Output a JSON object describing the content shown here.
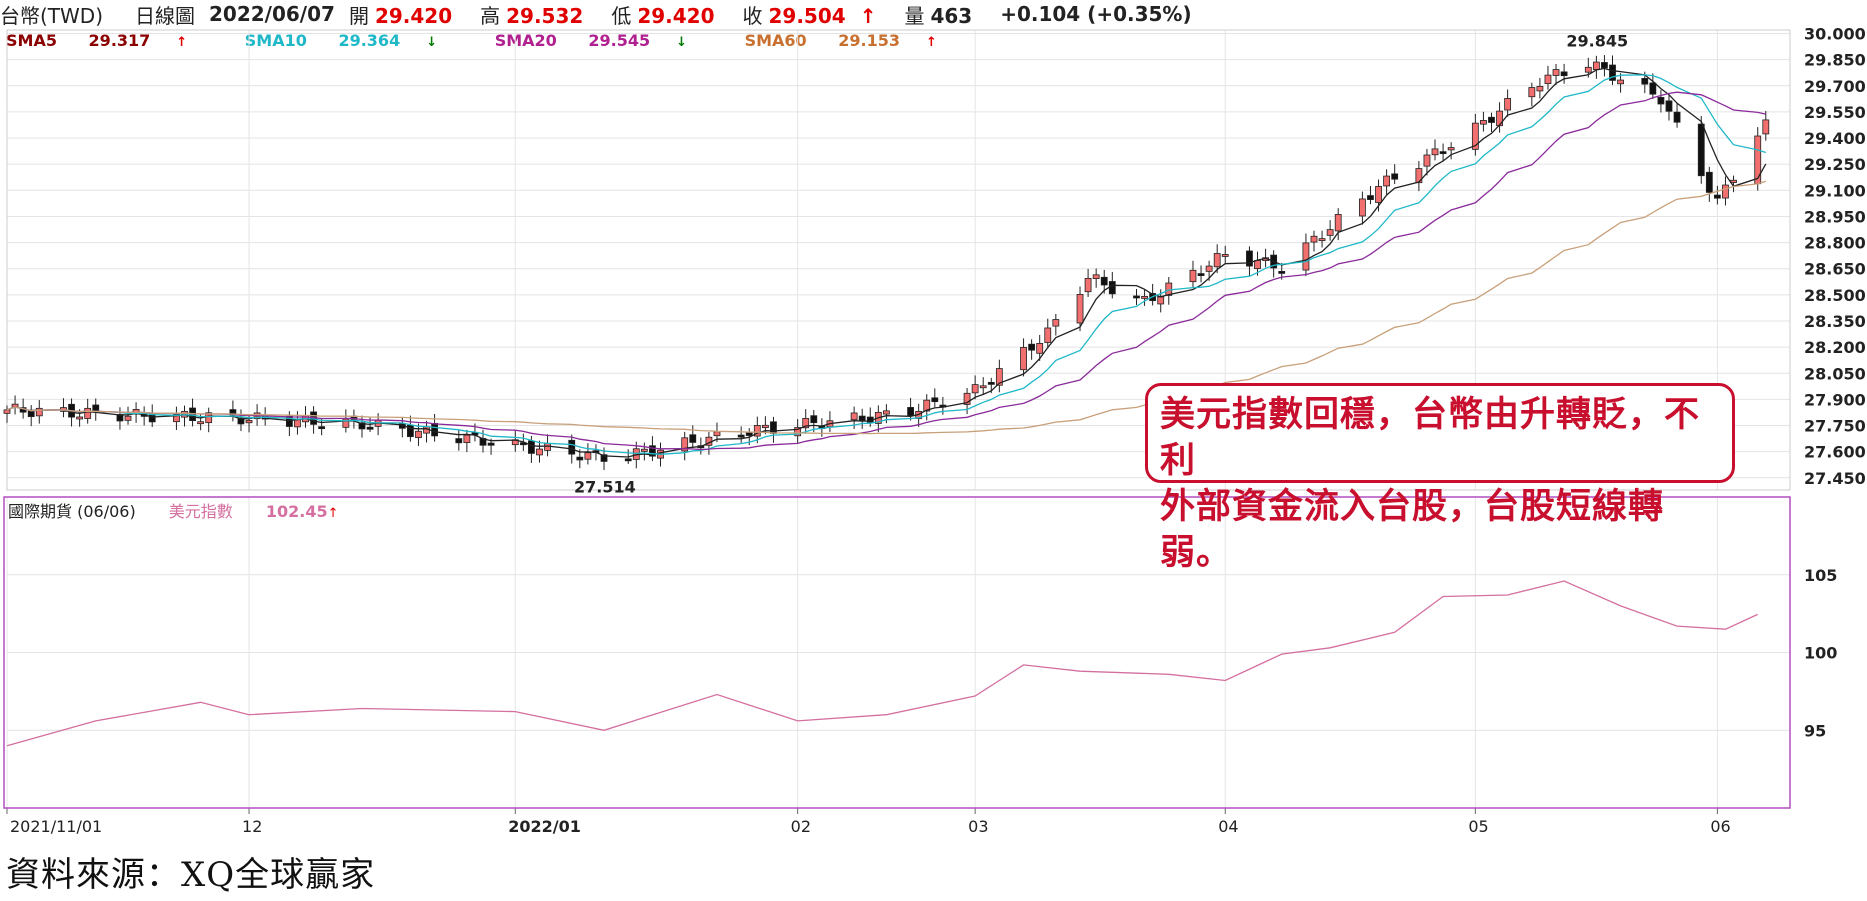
{
  "header": {
    "symbol": "台幣(TWD)",
    "period": "日線圖",
    "date": "2022/06/07",
    "open_label": "開",
    "open": "29.420",
    "high_label": "高",
    "high": "29.532",
    "low_label": "低",
    "low": "29.420",
    "close_label": "收",
    "close": "29.504",
    "volume_label": "量",
    "volume": "463",
    "change": "+0.104 (+0.35%)"
  },
  "legend": [
    {
      "label": "SMA5",
      "value": "29.317",
      "arrow": "up",
      "color": "#8b0000"
    },
    {
      "label": "SMA10",
      "value": "29.364",
      "arrow": "down",
      "color": "#1fb8c8"
    },
    {
      "label": "SMA20",
      "value": "29.545",
      "arrow": "down",
      "color": "#b0208f"
    },
    {
      "label": "SMA60",
      "value": "29.153",
      "arrow": "up",
      "color": "#c87030"
    }
  ],
  "sub_legend": {
    "panel_title": "國際期貨 (06/06)",
    "series_label": "美元指數",
    "series_value": "102.45",
    "color": "#d46fa0"
  },
  "annotation": {
    "line1": "美元指數回穩，台幣由升轉貶，不利",
    "line2": "外部資金流入台股，台股短線轉弱。"
  },
  "source": "資料來源：XQ全球贏家",
  "colors": {
    "up_candle": "#f26f6f",
    "down_candle": "#111111",
    "grid": "#e4e4e4",
    "frame": "#b24fc0"
  },
  "chart_data": [
    {
      "type": "candlestick",
      "title": "台幣(TWD) 日線圖",
      "x_tick_labels": [
        "2021/11/01",
        "12",
        "2022/01",
        "02",
        "03",
        "04",
        "05",
        "06"
      ],
      "x_tick_dates": [
        "2021-11-01",
        "2021-12-01",
        "2022-01-03",
        "2022-02-07",
        "2022-03-01",
        "2022-04-01",
        "2022-05-02",
        "2022-06-01"
      ],
      "y_tick_labels": [
        "30.000",
        "29.850",
        "29.700",
        "29.550",
        "29.400",
        "29.250",
        "29.100",
        "28.950",
        "28.800",
        "28.650",
        "28.500",
        "28.350",
        "28.200",
        "28.050",
        "27.900",
        "27.750",
        "27.600",
        "27.450"
      ],
      "ylim": [
        27.38,
        30.02
      ],
      "annotations": [
        {
          "label": "29.845",
          "value": 29.845
        },
        {
          "label": "27.514",
          "value": 27.514
        }
      ],
      "series_close_anchors": {
        "dates": [
          "2021-11-01",
          "2021-11-15",
          "2021-12-01",
          "2021-12-15",
          "2022-01-01",
          "2022-01-15",
          "2022-02-01",
          "2022-02-20",
          "2022-03-01",
          "2022-03-10",
          "2022-03-15",
          "2022-03-22",
          "2022-04-01",
          "2022-04-08",
          "2022-04-20",
          "2022-05-01",
          "2022-05-10",
          "2022-05-16",
          "2022-05-25",
          "2022-06-01",
          "2022-06-07"
        ],
        "close": [
          27.84,
          27.81,
          27.79,
          27.76,
          27.65,
          27.56,
          27.72,
          27.82,
          27.95,
          28.28,
          28.6,
          28.46,
          28.73,
          28.66,
          29.12,
          29.42,
          29.73,
          29.83,
          29.63,
          29.03,
          29.504
        ]
      },
      "moving_averages": [
        {
          "name": "SMA5",
          "last": 29.317
        },
        {
          "name": "SMA10",
          "last": 29.364
        },
        {
          "name": "SMA20",
          "last": 29.545
        },
        {
          "name": "SMA60",
          "last": 29.153
        }
      ]
    },
    {
      "type": "line",
      "title": "國際期貨 (06/06)",
      "series": [
        {
          "name": "美元指數",
          "dates": [
            "2021-11-01",
            "2021-11-12",
            "2021-11-25",
            "2021-12-01",
            "2021-12-15",
            "2022-01-03",
            "2022-01-14",
            "2022-01-28",
            "2022-02-07",
            "2022-02-18",
            "2022-03-01",
            "2022-03-07",
            "2022-03-14",
            "2022-03-25",
            "2022-04-01",
            "2022-04-08",
            "2022-04-14",
            "2022-04-22",
            "2022-04-28",
            "2022-05-06",
            "2022-05-13",
            "2022-05-20",
            "2022-05-27",
            "2022-06-02",
            "2022-06-06"
          ],
          "values": [
            94.0,
            95.6,
            96.8,
            96.0,
            96.4,
            96.2,
            95.0,
            97.3,
            95.6,
            96.0,
            97.2,
            99.2,
            98.8,
            98.6,
            98.2,
            99.9,
            100.3,
            101.3,
            103.6,
            103.7,
            104.6,
            103.0,
            101.7,
            101.5,
            102.45
          ]
        }
      ],
      "y_tick_labels": [
        "105",
        "100",
        "95"
      ],
      "ylim": [
        90,
        110
      ]
    }
  ]
}
